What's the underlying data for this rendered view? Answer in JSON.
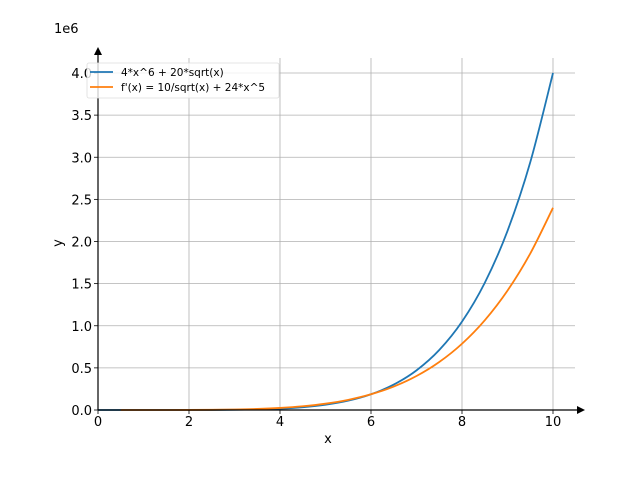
{
  "chart_data": {
    "type": "line",
    "title": "",
    "xlabel": "x",
    "ylabel": "y",
    "offset_label": "1e6",
    "xlim": [
      0,
      10.7
    ],
    "ylim": [
      0,
      4.2
    ],
    "grid": true,
    "legend_placement": "top-left",
    "xticks": [
      0,
      2,
      4,
      6,
      8,
      10
    ],
    "xtick_labels": [
      "0",
      "2",
      "4",
      "6",
      "8",
      "10"
    ],
    "yticks": [
      0,
      0.5,
      1,
      1.5,
      2,
      2.5,
      3,
      3.5,
      4
    ],
    "ytick_labels": [
      "0.0",
      "0.5",
      "1.0",
      "1.5",
      "2.0",
      "2.5",
      "3.0",
      "3.5",
      "4.0"
    ],
    "x": [
      0,
      0.5,
      1,
      1.5,
      2,
      2.5,
      3,
      3.5,
      4,
      4.5,
      5,
      5.5,
      6,
      6.5,
      7,
      7.5,
      8,
      8.5,
      9,
      9.5,
      10
    ],
    "series": [
      {
        "name": "4*x^6 + 20*sqrt(x)",
        "color": "#1f77b4",
        "values": [
          0,
          14.2,
          24,
          70.1,
          284.3,
          1008,
          2951,
          7391,
          16424,
          33258,
          62545,
          110769,
          186673,
          301726,
          470649,
          711971,
          1048633,
          1508655,
          2125824,
          2940431,
          4000063
        ]
      },
      {
        "name": "f'(x) = 10/sqrt(x) + 24*x^5",
        "color": "#ff7f0e",
        "values": [
          null,
          14.9,
          34,
          190.4,
          775,
          2350,
          5838,
          12610,
          24581,
          44292,
          75004,
          120791,
          186628,
          278476,
          403372,
          569535,
          786436,
          1064895,
          1417179,
          1857077,
          2400003
        ]
      }
    ]
  }
}
